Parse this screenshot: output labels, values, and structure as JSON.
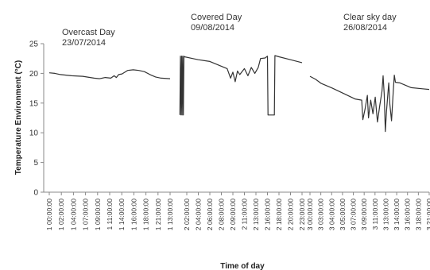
{
  "chart_data": {
    "type": "line",
    "ylabel": "Temperature Environment (°C)",
    "xlabel": "Time of day",
    "ylim": [
      0,
      25
    ],
    "yticks": [
      0,
      5,
      10,
      15,
      20,
      25
    ],
    "grid": false,
    "annotations": [
      {
        "lines": [
          "Overcast Day",
          "23/07/2014"
        ],
        "segment": 0
      },
      {
        "lines": [
          "Covered Day",
          "09/08/2014"
        ],
        "segment": 1
      },
      {
        "lines": [
          "Clear sky day",
          "26/08/2014"
        ],
        "segment": 2
      }
    ],
    "segments": [
      {
        "tick_labels": [
          "1 00:00:00",
          "1 02:00:00",
          "1 04:00:00",
          "1 07:00:00",
          "1 09:00:00",
          "1 11:00:00",
          "1 14:00:00",
          "1 16:00:00",
          "1 18:00:00",
          "1 21:00:00",
          "1 13:00:00"
        ],
        "points": [
          [
            0,
            20.1
          ],
          [
            0.5,
            20.0
          ],
          [
            1,
            19.8
          ],
          [
            2,
            19.6
          ],
          [
            3,
            19.5
          ],
          [
            4,
            19.2
          ],
          [
            4.5,
            19.1
          ],
          [
            5,
            19.3
          ],
          [
            5.5,
            19.2
          ],
          [
            5.8,
            19.6
          ],
          [
            6,
            19.3
          ],
          [
            6.2,
            19.8
          ],
          [
            6.5,
            19.9
          ],
          [
            7,
            20.5
          ],
          [
            7.5,
            20.6
          ],
          [
            8,
            20.5
          ],
          [
            8.5,
            20.3
          ],
          [
            9,
            19.8
          ],
          [
            9.5,
            19.4
          ],
          [
            10,
            19.2
          ],
          [
            10.8,
            19.1
          ]
        ]
      },
      {
        "tick_labels": [
          "2 02:00:00",
          "2 04:00:00",
          "2 06:00:00",
          "2 08:00:00",
          "2 09:00:00",
          "2 11:00:00",
          "2 13:00:00",
          "2 16:00:00",
          "2 18:00:00",
          "2 20:00:00",
          "2 23:00:00"
        ],
        "points": [
          [
            -0.6,
            13.0
          ],
          [
            -0.55,
            22.9
          ],
          [
            -0.5,
            13.0
          ],
          [
            -0.45,
            22.9
          ],
          [
            -0.4,
            13.0
          ],
          [
            -0.35,
            22.9
          ],
          [
            -0.3,
            13.0
          ],
          [
            -0.25,
            22.9
          ],
          [
            -0.2,
            22.8
          ],
          [
            0.5,
            22.5
          ],
          [
            1,
            22.3
          ],
          [
            2,
            22.0
          ],
          [
            2.5,
            21.6
          ],
          [
            3,
            21.2
          ],
          [
            3.5,
            20.8
          ],
          [
            3.8,
            19.2
          ],
          [
            4,
            20.2
          ],
          [
            4.2,
            18.6
          ],
          [
            4.4,
            20.4
          ],
          [
            4.6,
            19.8
          ],
          [
            5,
            20.8
          ],
          [
            5.3,
            19.6
          ],
          [
            5.6,
            21.0
          ],
          [
            5.9,
            20.0
          ],
          [
            6.2,
            21.0
          ],
          [
            6.4,
            22.5
          ],
          [
            6.8,
            22.6
          ],
          [
            7,
            22.9
          ],
          [
            7.05,
            13.0
          ],
          [
            7.6,
            13.0
          ],
          [
            7.65,
            23.0
          ],
          [
            8,
            22.8
          ],
          [
            9,
            22.3
          ],
          [
            10,
            21.8
          ]
        ]
      },
      {
        "tick_labels": [
          "3 00:00:00",
          "3 03:00:00",
          "3 04:00:00",
          "3 05:00:00",
          "3 07:00:00",
          "3 09:00:00",
          "3 11:00:00",
          "3 13:00:00",
          "3 14:00:00",
          "3 16:00:00",
          "3 18:00:00",
          "3 21:00:00"
        ],
        "points": [
          [
            0,
            19.5
          ],
          [
            0.5,
            19.0
          ],
          [
            1,
            18.3
          ],
          [
            2,
            17.5
          ],
          [
            3,
            16.6
          ],
          [
            4,
            15.7
          ],
          [
            4.6,
            15.5
          ],
          [
            4.7,
            12.2
          ],
          [
            4.9,
            14.0
          ],
          [
            5.1,
            16.3
          ],
          [
            5.2,
            12.5
          ],
          [
            5.4,
            15.5
          ],
          [
            5.6,
            13.2
          ],
          [
            5.8,
            16.0
          ],
          [
            6.0,
            11.8
          ],
          [
            6.2,
            14.5
          ],
          [
            6.4,
            17.0
          ],
          [
            6.5,
            19.6
          ],
          [
            6.6,
            16.5
          ],
          [
            6.7,
            10.2
          ],
          [
            6.8,
            13.5
          ],
          [
            7.0,
            18.4
          ],
          [
            7.1,
            14.8
          ],
          [
            7.25,
            12.0
          ],
          [
            7.4,
            16.8
          ],
          [
            7.5,
            19.7
          ],
          [
            7.6,
            18.5
          ],
          [
            8,
            18.4
          ],
          [
            8.5,
            18.0
          ],
          [
            9,
            17.6
          ],
          [
            10,
            17.4
          ],
          [
            10.6,
            17.3
          ]
        ]
      }
    ]
  }
}
